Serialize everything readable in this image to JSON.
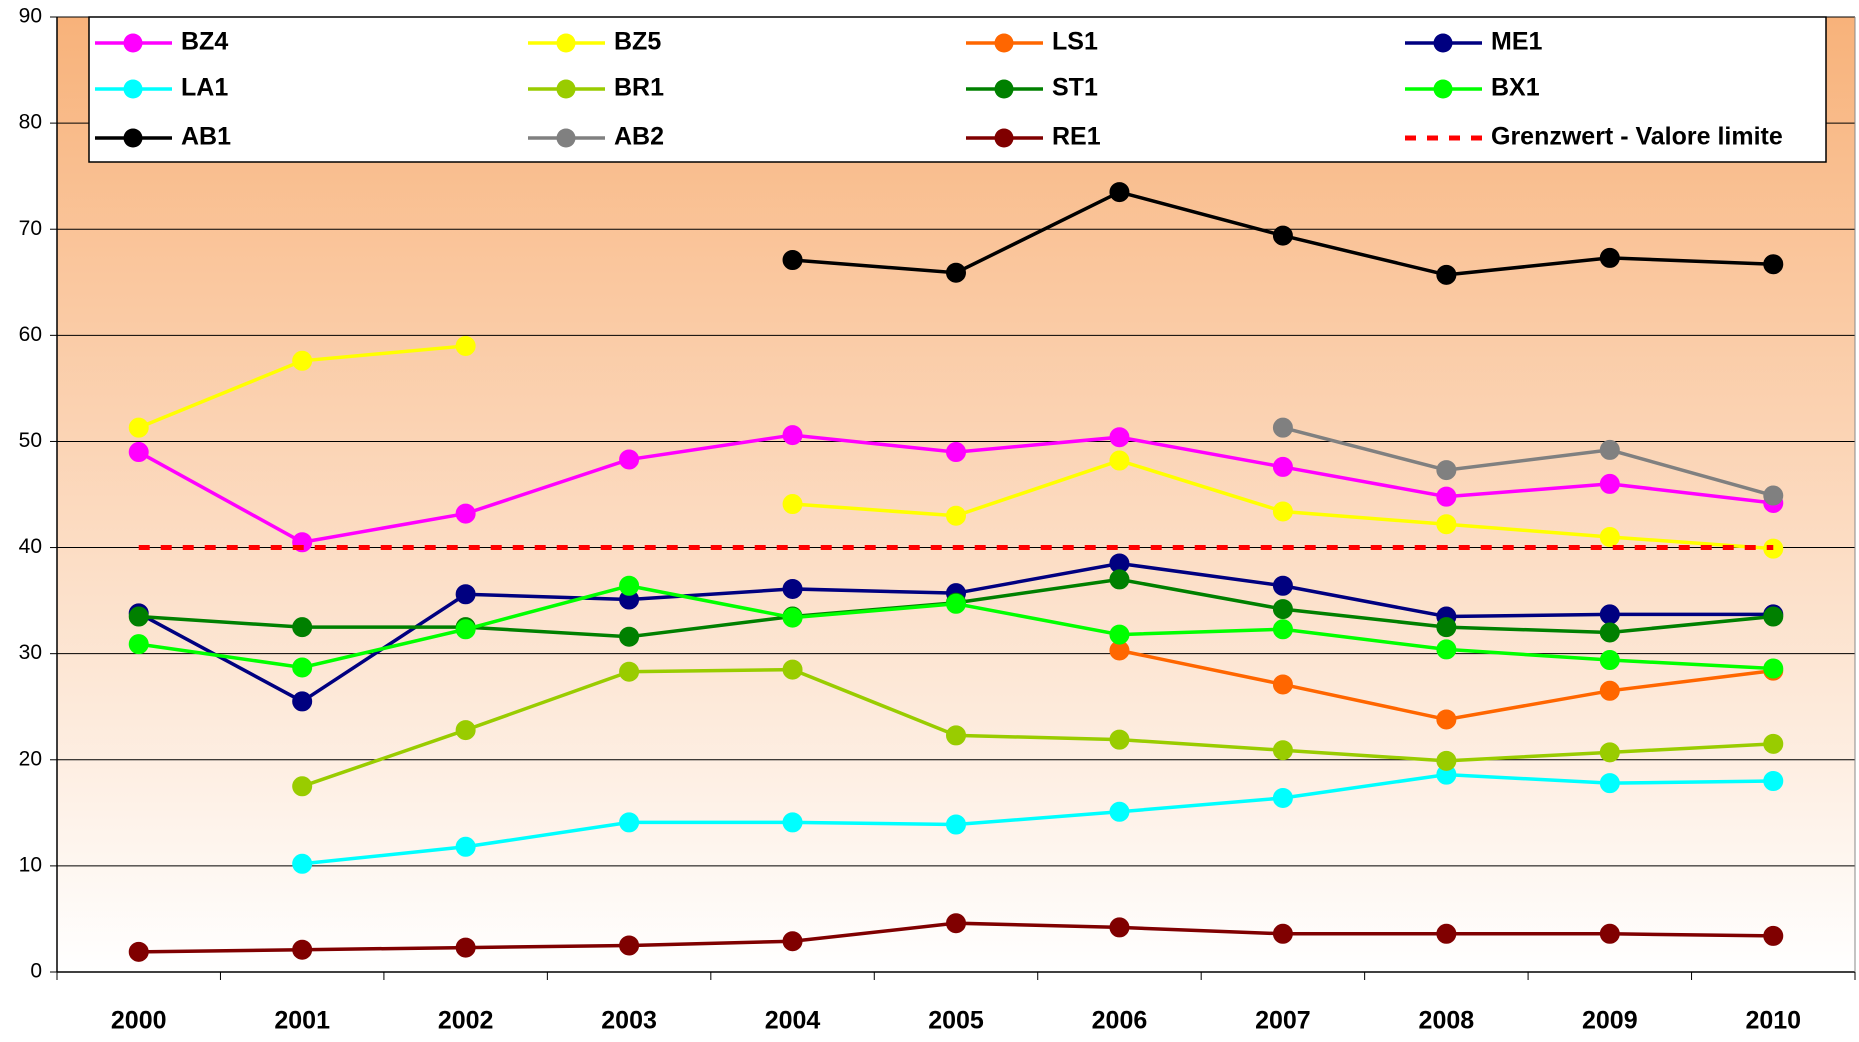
{
  "chart_data": {
    "type": "line",
    "categories": [
      "2000",
      "2001",
      "2002",
      "2003",
      "2004",
      "2005",
      "2006",
      "2007",
      "2008",
      "2009",
      "2010"
    ],
    "ylim": [
      0,
      90
    ],
    "yticks": [
      0,
      10,
      20,
      30,
      40,
      50,
      60,
      70,
      80,
      90
    ],
    "grid": true,
    "series": [
      {
        "name": "BZ4",
        "color": "#ff00ff",
        "values": [
          49,
          40.5,
          43.2,
          48.3,
          50.6,
          49,
          50.4,
          47.6,
          44.8,
          46,
          44.2
        ]
      },
      {
        "name": "BZ5",
        "color": "#ffff00",
        "values": [
          51.3,
          57.6,
          59,
          null,
          44.1,
          43,
          48.2,
          43.4,
          42.2,
          41,
          39.9
        ]
      },
      {
        "name": "LS1",
        "color": "#ff6600",
        "values": [
          null,
          null,
          null,
          null,
          null,
          null,
          30.3,
          27.1,
          23.8,
          26.5,
          28.4
        ]
      },
      {
        "name": "ME1",
        "color": "#000080",
        "values": [
          33.8,
          25.5,
          35.6,
          35.1,
          36.1,
          35.7,
          38.5,
          36.4,
          33.5,
          33.7,
          33.7
        ]
      },
      {
        "name": "LA1",
        "color": "#00ffff",
        "values": [
          null,
          10.2,
          11.8,
          14.1,
          14.1,
          13.9,
          15.1,
          16.4,
          18.6,
          17.8,
          18
        ]
      },
      {
        "name": "BR1",
        "color": "#99cc00",
        "values": [
          null,
          17.5,
          22.8,
          28.3,
          28.5,
          22.3,
          21.9,
          20.9,
          19.9,
          20.7,
          21.5
        ]
      },
      {
        "name": "ST1",
        "color": "#008000",
        "values": [
          33.5,
          32.5,
          32.5,
          31.6,
          33.5,
          34.8,
          37,
          34.2,
          32.5,
          32,
          33.5
        ]
      },
      {
        "name": "BX1",
        "color": "#00ff00",
        "values": [
          30.9,
          28.7,
          32.3,
          36.4,
          33.4,
          34.7,
          31.8,
          32.3,
          30.4,
          29.4,
          28.6
        ]
      },
      {
        "name": "AB1",
        "color": "#000000",
        "values": [
          null,
          null,
          null,
          null,
          67.1,
          65.9,
          73.5,
          69.4,
          65.7,
          67.3,
          66.7
        ]
      },
      {
        "name": "AB2",
        "color": "#808080",
        "values": [
          null,
          null,
          null,
          null,
          null,
          null,
          null,
          51.3,
          47.3,
          49.2,
          44.9
        ]
      },
      {
        "name": "RE1",
        "color": "#800000",
        "values": [
          1.9,
          2.1,
          2.3,
          2.5,
          2.9,
          4.6,
          4.2,
          3.6,
          3.6,
          3.6,
          3.4
        ]
      },
      {
        "name": "Grenzwert - Valore limite",
        "color": "#ff0000",
        "dashed": true,
        "markers": false,
        "values": [
          40,
          40,
          40,
          40,
          40,
          40,
          40,
          40,
          40,
          40,
          40
        ]
      }
    ]
  }
}
